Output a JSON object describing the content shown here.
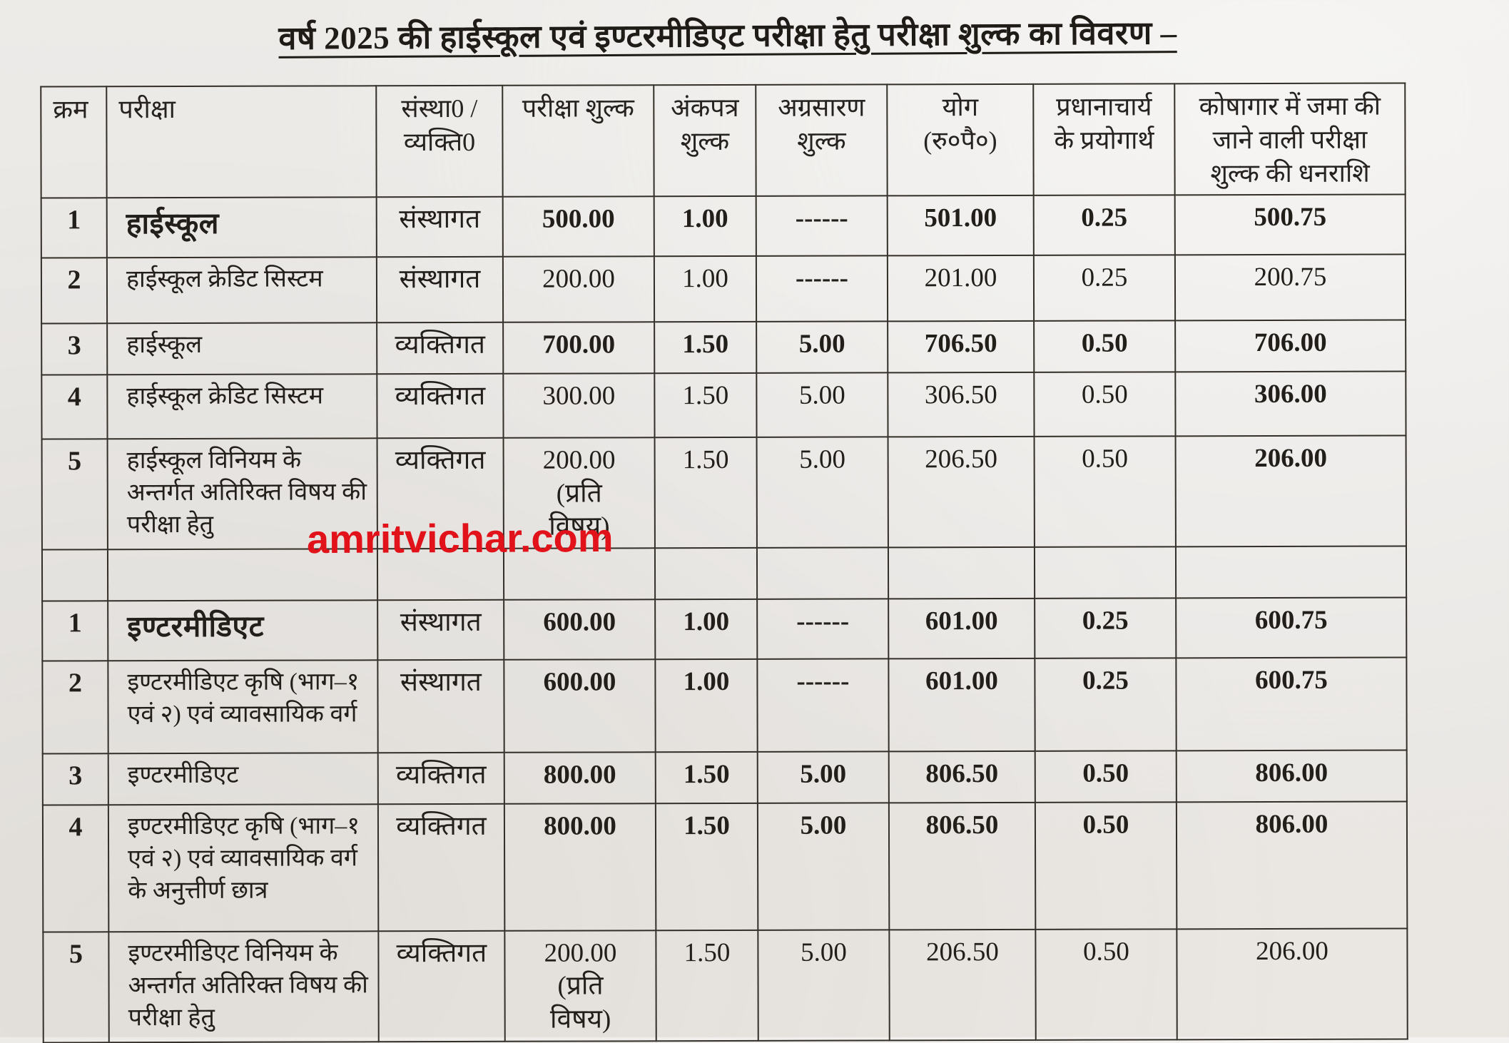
{
  "title": "वर्ष 2025 की हाईस्कूल एवं इण्टरमीडिएट परीक्षा हेतु परीक्षा शुल्क का विवरण –",
  "watermark": {
    "text": "amritvichar.com",
    "color": "#e2121b"
  },
  "table": {
    "columns": [
      {
        "key": "sno",
        "label": "क्रम"
      },
      {
        "key": "exam",
        "label": "परीक्षा"
      },
      {
        "key": "category",
        "label": "संस्था0 /\nव्यक्ति0"
      },
      {
        "key": "exam-fee",
        "label": "परीक्षा शुल्क"
      },
      {
        "key": "marksheet-fee",
        "label": "अंकपत्र\nशुल्क"
      },
      {
        "key": "forwarding-fee",
        "label": "अग्रसारण\nशुल्क"
      },
      {
        "key": "total",
        "label": "योग\n(रु०पै०)"
      },
      {
        "key": "principal-use",
        "label": "प्रधानाचार्य\nके प्रयोगार्थ"
      },
      {
        "key": "treasury-amount",
        "label": "कोषागार में जमा की\nजाने वाली परीक्षा\nशुल्क की धनराशि"
      }
    ],
    "sections": [
      {
        "id": "highschool",
        "rows": [
          {
            "cells": [
              "1",
              "हाईस्कूल",
              "संस्थागत",
              "500.00",
              "1.00",
              "------",
              "501.00",
              "0.25",
              "500.75"
            ],
            "bold": [
              true,
              true,
              false,
              true,
              true,
              true,
              true,
              true,
              true
            ],
            "big_exam": true
          },
          {
            "cells": [
              "2",
              "हाईस्कूल क्रेडिट सिस्टम",
              "संस्थागत",
              "200.00",
              "1.00",
              "------",
              "201.00",
              "0.25",
              "200.75"
            ],
            "bold": [
              true,
              false,
              false,
              false,
              false,
              true,
              false,
              false,
              false
            ],
            "big_exam": false
          },
          {
            "cells": [
              "3",
              "हाईस्कूल",
              "व्यक्तिगत",
              "700.00",
              "1.50",
              "5.00",
              "706.50",
              "0.50",
              "706.00"
            ],
            "bold": [
              true,
              false,
              false,
              true,
              true,
              true,
              true,
              true,
              true
            ],
            "big_exam": false
          },
          {
            "cells": [
              "4",
              "हाईस्कूल क्रेडिट सिस्टम",
              "व्यक्तिगत",
              "300.00",
              "1.50",
              "5.00",
              "306.50",
              "0.50",
              "306.00"
            ],
            "bold": [
              true,
              false,
              false,
              false,
              false,
              false,
              false,
              false,
              true
            ],
            "big_exam": false
          },
          {
            "cells": [
              "5",
              "हाईस्कूल विनियम के अन्तर्गत अतिरिक्त विषय की परीक्षा हेतु",
              "व्यक्तिगत",
              "200.00\n(प्रति\nविषय)",
              "1.50",
              "5.00",
              "206.50",
              "0.50",
              "206.00"
            ],
            "bold": [
              true,
              false,
              false,
              false,
              false,
              false,
              false,
              false,
              true
            ],
            "big_exam": false
          }
        ]
      },
      {
        "id": "intermediate",
        "rows": [
          {
            "cells": [
              "1",
              "इण्टरमीडिएट",
              "संस्थागत",
              "600.00",
              "1.00",
              "------",
              "601.00",
              "0.25",
              "600.75"
            ],
            "bold": [
              true,
              true,
              false,
              true,
              true,
              true,
              true,
              true,
              true
            ],
            "big_exam": true
          },
          {
            "cells": [
              "2",
              "इण्टरमीडिएट कृषि (भाग–१ एवं २) एवं व्यावसायिक वर्ग",
              "संस्थागत",
              "600.00",
              "1.00",
              "------",
              "601.00",
              "0.25",
              "600.75"
            ],
            "bold": [
              true,
              false,
              false,
              true,
              true,
              true,
              true,
              true,
              true
            ],
            "big_exam": false
          },
          {
            "cells": [
              "3",
              "इण्टरमीडिएट",
              "व्यक्तिगत",
              "800.00",
              "1.50",
              "5.00",
              "806.50",
              "0.50",
              "806.00"
            ],
            "bold": [
              true,
              false,
              false,
              true,
              true,
              true,
              true,
              true,
              true
            ],
            "big_exam": false
          },
          {
            "cells": [
              "4",
              "इण्टरमीडिएट कृषि (भाग–१ एवं २) एवं व्यावसायिक वर्ग के अनुत्तीर्ण छात्र",
              "व्यक्तिगत",
              "800.00",
              "1.50",
              "5.00",
              "806.50",
              "0.50",
              "806.00"
            ],
            "bold": [
              true,
              false,
              false,
              true,
              true,
              true,
              true,
              true,
              true
            ],
            "big_exam": false
          },
          {
            "cells": [
              "5",
              "इण्टरमीडिएट विनियम के अन्तर्गत अतिरिक्त विषय की परीक्षा हेतु",
              "व्यक्तिगत",
              "200.00\n(प्रति\nविषय)",
              "1.50",
              "5.00",
              "206.50",
              "0.50",
              "206.00"
            ],
            "bold": [
              true,
              false,
              false,
              false,
              false,
              false,
              false,
              false,
              false
            ],
            "big_exam": false
          }
        ]
      }
    ]
  }
}
